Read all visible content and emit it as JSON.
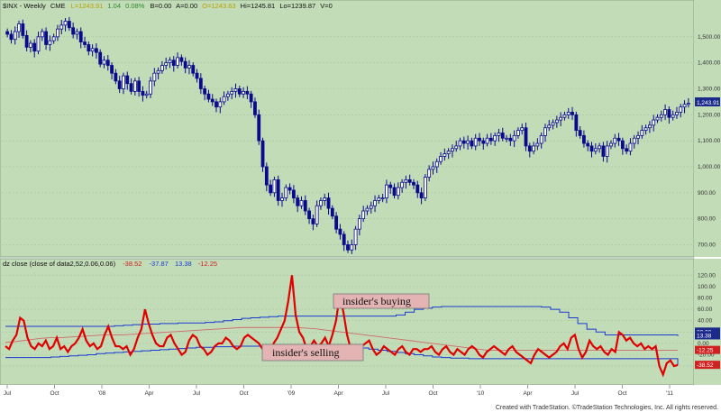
{
  "header": {
    "symbol": "$INX - Weekly",
    "exchange": "CME",
    "last": "L=1243.91",
    "change": "1.04",
    "change_pct": "0.08%",
    "bid": "B=0.00",
    "ask": "A=0.00",
    "open": "O=1243.63",
    "high": "Hi=1245.81",
    "low": "Lo=1239.87",
    "volume": "V=0"
  },
  "indicator_header": {
    "title": "dz close (close of data2,52,0.06,0.06)",
    "v1": "-38.52",
    "v2": "-37.87",
    "v3": "13.38",
    "v4": "-12.25"
  },
  "annotations": {
    "buying": "insider's buying",
    "selling": "insider's selling"
  },
  "footer": {
    "left": "Created with TradeStation. ©TradeStation Technologies, Inc. All rights reserved."
  },
  "colors": {
    "background": "#c2dcb8",
    "candle": "#0a0a8c",
    "indicator": "#e00000",
    "band": "#1a3ad0",
    "mid": "#d06a6a"
  },
  "chart_data": [
    {
      "type": "candlestick",
      "series_name": "$INX - Weekly",
      "x_labels": [
        "Jul",
        "Oct",
        "'08",
        "Apr",
        "Jul",
        "Oct",
        "'09",
        "Apr",
        "Jul",
        "Oct",
        "'10",
        "Apr",
        "Jul",
        "Oct",
        "'11"
      ],
      "y_ticks": [
        700,
        800,
        900,
        1000,
        1100,
        1200,
        1300,
        1400,
        1500
      ],
      "y_range": [
        660,
        1600
      ],
      "last_price_label": "1,243.91",
      "close": [
        1510,
        1490,
        1520,
        1550,
        1505,
        1460,
        1475,
        1445,
        1500,
        1520,
        1470,
        1485,
        1500,
        1530,
        1545,
        1560,
        1535,
        1510,
        1520,
        1480,
        1470,
        1445,
        1455,
        1440,
        1395,
        1410,
        1390,
        1360,
        1330,
        1300,
        1350,
        1320,
        1290,
        1330,
        1290,
        1275,
        1280,
        1330,
        1360,
        1370,
        1390,
        1400,
        1410,
        1390,
        1420,
        1405,
        1380,
        1390,
        1360,
        1340,
        1300,
        1280,
        1260,
        1250,
        1230,
        1250,
        1270,
        1280,
        1290,
        1300,
        1280,
        1290,
        1280,
        1250,
        1200,
        1100,
        1000,
        930,
        900,
        950,
        870,
        880,
        920,
        910,
        880,
        850,
        870,
        830,
        800,
        780,
        850,
        870,
        880,
        840,
        810,
        760,
        740,
        700,
        680,
        700,
        760,
        800,
        830,
        840,
        850,
        870,
        880,
        880,
        930,
        920,
        890,
        920,
        940,
        950,
        940,
        930,
        900,
        880,
        960,
        990,
        1000,
        1020,
        1040,
        1050,
        1060,
        1070,
        1080,
        1100,
        1090,
        1100,
        1080,
        1110,
        1100,
        1090,
        1110,
        1100,
        1120,
        1130,
        1110,
        1110,
        1100,
        1120,
        1140,
        1150,
        1080,
        1060,
        1080,
        1090,
        1120,
        1150,
        1160,
        1170,
        1180,
        1190,
        1200,
        1210,
        1200,
        1140,
        1120,
        1090,
        1080,
        1060,
        1070,
        1080,
        1040,
        1080,
        1090,
        1110,
        1100,
        1070,
        1060,
        1090,
        1110,
        1120,
        1140,
        1150,
        1160,
        1180,
        1190,
        1200,
        1220,
        1190,
        1200,
        1210,
        1230,
        1240,
        1244
      ]
    },
    {
      "type": "line",
      "title": "dz close (close of data2,52,0.06,0.06)",
      "y_ticks": [
        -40,
        -20,
        0,
        20,
        40,
        60,
        80,
        100,
        120
      ],
      "y_range": [
        -70,
        130
      ],
      "series": [
        {
          "name": "",
          "values": [
            -5,
            -10,
            5,
            15,
            45,
            40,
            10,
            -5,
            -10,
            0,
            -5,
            5,
            -10,
            -5,
            10,
            -10,
            -5,
            -15,
            -5,
            0,
            10,
            25,
            5,
            -5,
            0,
            -10,
            -5,
            15,
            30,
            10,
            -5,
            -5,
            -10,
            -5,
            -20,
            -10,
            10,
            25,
            60,
            35,
            15,
            0,
            -5,
            -5,
            10,
            15,
            0,
            -10,
            -20,
            -15,
            5,
            15,
            10,
            -5,
            -10,
            -20,
            -15,
            -5,
            0,
            0,
            10,
            5,
            -5,
            -10,
            -5,
            10,
            15,
            10,
            5,
            0,
            -10,
            -5,
            -15,
            0,
            10,
            25,
            40,
            75,
            120,
            50,
            20,
            10,
            -10,
            -5,
            5,
            -5,
            0,
            10,
            -5,
            15,
            40,
            85,
            55,
            15,
            -10,
            -20,
            -15,
            -5,
            0,
            5,
            -10,
            -20,
            -15,
            -5,
            -10,
            -15,
            -20,
            -10,
            -5,
            -15,
            -20,
            -10,
            -10,
            -15,
            -10,
            -10,
            -5,
            -15,
            -20,
            -10,
            -5,
            -15,
            -20,
            -10,
            -15,
            -20,
            -10,
            -5,
            -10,
            -20,
            -25,
            -15,
            -10,
            -5,
            -10,
            -15,
            -20,
            -10,
            -5,
            -15,
            -20,
            -25,
            -30,
            -35,
            -20,
            -10,
            -15,
            -20,
            -25,
            -20,
            -15,
            -5,
            0,
            -10,
            10,
            15,
            -10,
            -25,
            -15,
            5,
            -5,
            -10,
            -5,
            -15,
            -20,
            -10,
            -15,
            20,
            15,
            5,
            10,
            0,
            -5,
            0,
            -10,
            -5,
            -10,
            -5,
            -40,
            -55,
            -35,
            -30,
            -40,
            -38
          ]
        },
        {
          "name": "",
          "values": [
            30,
            30,
            30,
            30,
            30,
            30,
            30,
            30,
            30,
            30,
            30,
            30,
            31,
            32,
            33,
            34,
            34,
            35,
            35,
            36,
            36,
            36,
            37,
            38,
            40,
            42,
            44,
            45,
            46,
            47,
            48,
            48,
            48,
            48,
            48,
            48,
            48,
            48,
            48,
            48,
            48,
            48,
            48,
            50,
            55,
            60,
            62,
            64,
            65,
            65,
            65,
            65,
            65,
            65,
            65,
            65,
            65,
            65,
            65,
            64,
            60,
            55,
            45,
            35,
            25,
            20,
            15,
            15,
            15,
            15,
            15,
            15,
            15,
            15,
            13
          ]
        },
        {
          "name": "",
          "values": [
            -25,
            -25,
            -25,
            -25,
            -25,
            -24,
            -23,
            -22,
            -21,
            -20,
            -18,
            -17,
            -16,
            -15,
            -14,
            -13,
            -12,
            -11,
            -10,
            -9,
            -8,
            -7,
            -7,
            -6,
            -6,
            -5,
            -5,
            -5,
            -5,
            -5,
            -5,
            -5,
            -5,
            -5,
            -5,
            -5,
            -5,
            -5,
            -6,
            -8,
            -10,
            -12,
            -14,
            -16,
            -18,
            -20,
            -22,
            -24,
            -25,
            -26,
            -26,
            -27,
            -27,
            -27,
            -27,
            -27,
            -27,
            -27,
            -27,
            -27,
            -27,
            -27,
            -27,
            -27,
            -27,
            -27,
            -27,
            -27,
            -27,
            -27,
            -27,
            -27,
            -27,
            -27,
            -38
          ]
        },
        {
          "name": "",
          "values": [
            2,
            3,
            5,
            7,
            9,
            10,
            10,
            11,
            12,
            13,
            14,
            15,
            15,
            15,
            16,
            17,
            18,
            19,
            20,
            21,
            22,
            23,
            24,
            25,
            26,
            27,
            28,
            28,
            28,
            28,
            28,
            28,
            28,
            27,
            26,
            24,
            22,
            20,
            18,
            16,
            14,
            12,
            10,
            8,
            6,
            4,
            2,
            0,
            -2,
            -4,
            -6,
            -8,
            -10,
            -12,
            -12,
            -12,
            -12,
            -12,
            -12,
            -12,
            -12,
            -12,
            -12,
            -12,
            -12,
            -12,
            -12,
            -12,
            -12,
            -12,
            -12,
            -12,
            -12,
            -12,
            -12
          ]
        }
      ],
      "value_labels": [
        "20.00",
        "13.38",
        "-12.25",
        "-38.52"
      ]
    }
  ]
}
